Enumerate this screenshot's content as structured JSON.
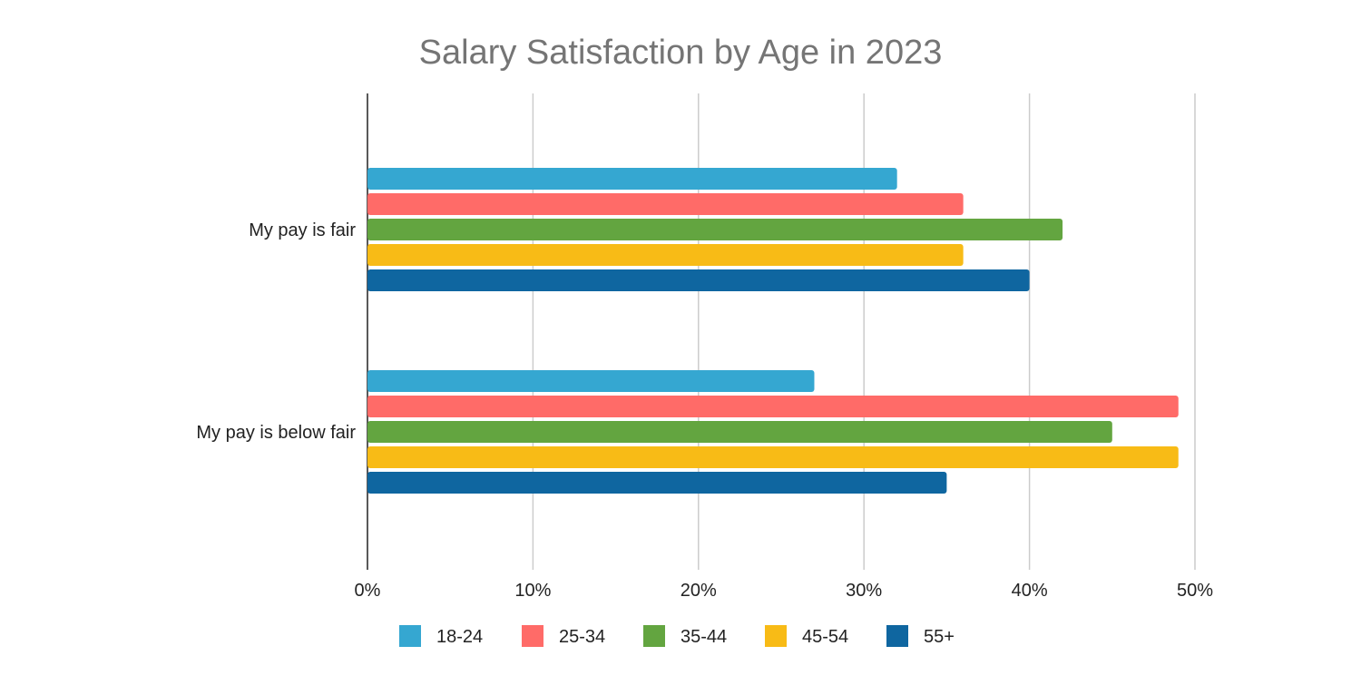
{
  "chart_data": {
    "type": "bar",
    "orientation": "horizontal",
    "title": "Salary Satisfaction by Age in 2023",
    "categories": [
      "My pay is fair",
      "My pay is below fair"
    ],
    "series": [
      {
        "name": "18-24",
        "color": "#35a7d1",
        "values": [
          32,
          27
        ]
      },
      {
        "name": "25-34",
        "color": "#ff6b68",
        "values": [
          36,
          49
        ]
      },
      {
        "name": "35-44",
        "color": "#63a540",
        "values": [
          42,
          45
        ]
      },
      {
        "name": "45-54",
        "color": "#f8bb16",
        "values": [
          36,
          49
        ]
      },
      {
        "name": "55+",
        "color": "#0f66a0",
        "values": [
          40,
          35
        ]
      }
    ],
    "xlim": [
      0,
      50
    ],
    "x_ticks": [
      "0%",
      "10%",
      "20%",
      "30%",
      "40%",
      "50%"
    ],
    "unit": "%",
    "grid": true,
    "legend": "bottom"
  }
}
